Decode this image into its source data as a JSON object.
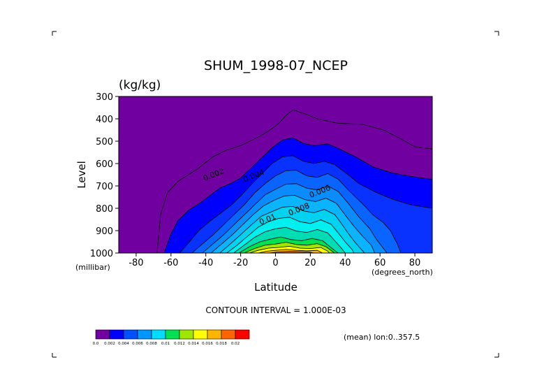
{
  "chart_data": {
    "type": "contour",
    "title": "SHUM_1998-07_NCEP",
    "units": "(kg/kg)",
    "xlabel": "Latitude",
    "ylabel": "Level",
    "x_unit_label": "(degrees_north)",
    "y_unit_label": "(millibar)",
    "xlim": [
      -90,
      90
    ],
    "ylim": [
      1000,
      300
    ],
    "x_ticks": [
      -80,
      -60,
      -40,
      -20,
      0,
      20,
      40,
      60,
      80
    ],
    "x_tick_labels": [
      "-80",
      "-60",
      "-40",
      "-20",
      "0",
      "20",
      "40",
      "60",
      "80"
    ],
    "y_ticks": [
      300,
      400,
      500,
      600,
      700,
      800,
      900,
      1000
    ],
    "y_tick_labels": [
      "300",
      "400",
      "500",
      "600",
      "700",
      "800",
      "900",
      "1000"
    ],
    "contour_interval_text": "CONTOUR INTERVAL = 1.000E-03",
    "annotation": "(mean) lon:0..357.5",
    "contour_labels": [
      {
        "text": "0.002",
        "lat": -35,
        "level": 660
      },
      {
        "text": "0.004",
        "lat": -12,
        "level": 665
      },
      {
        "text": "0.006",
        "lat": 26,
        "level": 735
      },
      {
        "text": "0.008",
        "lat": 14,
        "level": 815
      },
      {
        "text": "0.01",
        "lat": -4,
        "level": 860
      }
    ],
    "levels": [
      {
        "value": 0.001,
        "fill": false,
        "points": [
          [
            -68,
            1000
          ],
          [
            -66,
            830
          ],
          [
            -62,
            730
          ],
          [
            -56,
            680
          ],
          [
            -50,
            650
          ],
          [
            -44,
            620
          ],
          [
            -36,
            570
          ],
          [
            -28,
            540
          ],
          [
            -20,
            520
          ],
          [
            -12,
            490
          ],
          [
            -4,
            455
          ],
          [
            2,
            420
          ],
          [
            6,
            385
          ],
          [
            10,
            360
          ],
          [
            16,
            375
          ],
          [
            24,
            400
          ],
          [
            36,
            420
          ],
          [
            50,
            425
          ],
          [
            62,
            450
          ],
          [
            72,
            490
          ],
          [
            80,
            525
          ],
          [
            90,
            535
          ]
        ]
      },
      {
        "value": 0.002,
        "fill": true,
        "points": [
          [
            -64,
            1000
          ],
          [
            -60,
            915
          ],
          [
            -56,
            855
          ],
          [
            -50,
            810
          ],
          [
            -44,
            780
          ],
          [
            -38,
            745
          ],
          [
            -32,
            710
          ],
          [
            -26,
            690
          ],
          [
            -20,
            665
          ],
          [
            -14,
            620
          ],
          [
            -8,
            575
          ],
          [
            -2,
            530
          ],
          [
            4,
            495
          ],
          [
            10,
            485
          ],
          [
            16,
            510
          ],
          [
            22,
            520
          ],
          [
            30,
            512
          ],
          [
            38,
            540
          ],
          [
            46,
            570
          ],
          [
            56,
            615
          ],
          [
            66,
            640
          ],
          [
            76,
            655
          ],
          [
            84,
            665
          ],
          [
            90,
            670
          ]
        ]
      },
      {
        "value": 0.003,
        "fill": true,
        "points": [
          [
            -55,
            1000
          ],
          [
            -50,
            955
          ],
          [
            -44,
            900
          ],
          [
            -38,
            860
          ],
          [
            -32,
            825
          ],
          [
            -26,
            790
          ],
          [
            -20,
            745
          ],
          [
            -14,
            695
          ],
          [
            -8,
            648
          ],
          [
            -2,
            600
          ],
          [
            4,
            570
          ],
          [
            10,
            565
          ],
          [
            16,
            590
          ],
          [
            22,
            600
          ],
          [
            28,
            590
          ],
          [
            34,
            605
          ],
          [
            40,
            640
          ],
          [
            48,
            690
          ],
          [
            58,
            730
          ],
          [
            68,
            762
          ],
          [
            78,
            785
          ],
          [
            90,
            800
          ]
        ]
      },
      {
        "value": 0.004,
        "fill": true,
        "points": [
          [
            -48,
            1000
          ],
          [
            -42,
            960
          ],
          [
            -36,
            920
          ],
          [
            -30,
            875
          ],
          [
            -24,
            830
          ],
          [
            -18,
            785
          ],
          [
            -12,
            732
          ],
          [
            -6,
            690
          ],
          [
            0,
            655
          ],
          [
            6,
            632
          ],
          [
            12,
            630
          ],
          [
            18,
            655
          ],
          [
            24,
            662
          ],
          [
            30,
            645
          ],
          [
            36,
            670
          ],
          [
            42,
            720
          ],
          [
            50,
            780
          ],
          [
            56,
            830
          ],
          [
            62,
            865
          ],
          [
            66,
            900
          ],
          [
            70,
            960
          ],
          [
            72,
            1000
          ]
        ]
      },
      {
        "value": 0.005,
        "fill": true,
        "points": [
          [
            -42,
            1000
          ],
          [
            -36,
            960
          ],
          [
            -30,
            920
          ],
          [
            -24,
            875
          ],
          [
            -18,
            830
          ],
          [
            -12,
            785
          ],
          [
            -6,
            740
          ],
          [
            0,
            715
          ],
          [
            6,
            692
          ],
          [
            12,
            690
          ],
          [
            18,
            710
          ],
          [
            24,
            718
          ],
          [
            30,
            700
          ],
          [
            36,
            725
          ],
          [
            42,
            780
          ],
          [
            48,
            840
          ],
          [
            54,
            890
          ],
          [
            58,
            940
          ],
          [
            62,
            980
          ],
          [
            64,
            1000
          ]
        ]
      },
      {
        "value": 0.006,
        "fill": true,
        "points": [
          [
            -37,
            1000
          ],
          [
            -31,
            960
          ],
          [
            -25,
            920
          ],
          [
            -19,
            875
          ],
          [
            -13,
            830
          ],
          [
            -7,
            790
          ],
          [
            -1,
            765
          ],
          [
            5,
            745
          ],
          [
            11,
            742
          ],
          [
            17,
            762
          ],
          [
            23,
            770
          ],
          [
            29,
            755
          ],
          [
            35,
            778
          ],
          [
            40,
            830
          ],
          [
            45,
            880
          ],
          [
            50,
            925
          ],
          [
            55,
            965
          ],
          [
            57,
            1000
          ]
        ]
      },
      {
        "value": 0.007,
        "fill": true,
        "points": [
          [
            -32,
            1000
          ],
          [
            -26,
            960
          ],
          [
            -20,
            918
          ],
          [
            -14,
            875
          ],
          [
            -8,
            835
          ],
          [
            -2,
            815
          ],
          [
            4,
            795
          ],
          [
            10,
            792
          ],
          [
            16,
            812
          ],
          [
            22,
            820
          ],
          [
            28,
            805
          ],
          [
            34,
            828
          ],
          [
            38,
            870
          ],
          [
            42,
            915
          ],
          [
            46,
            955
          ],
          [
            50,
            990
          ],
          [
            51,
            1000
          ]
        ]
      },
      {
        "value": 0.008,
        "fill": true,
        "points": [
          [
            -28,
            1000
          ],
          [
            -22,
            965
          ],
          [
            -16,
            925
          ],
          [
            -10,
            885
          ],
          [
            -4,
            860
          ],
          [
            2,
            845
          ],
          [
            8,
            840
          ],
          [
            14,
            860
          ],
          [
            20,
            868
          ],
          [
            26,
            852
          ],
          [
            32,
            872
          ],
          [
            36,
            910
          ],
          [
            40,
            950
          ],
          [
            44,
            985
          ],
          [
            45,
            1000
          ]
        ]
      },
      {
        "value": 0.009,
        "fill": true,
        "points": [
          [
            -24,
            1000
          ],
          [
            -18,
            965
          ],
          [
            -12,
            930
          ],
          [
            -6,
            905
          ],
          [
            0,
            892
          ],
          [
            6,
            885
          ],
          [
            12,
            902
          ],
          [
            18,
            908
          ],
          [
            24,
            895
          ],
          [
            30,
            910
          ],
          [
            34,
            945
          ],
          [
            38,
            980
          ],
          [
            40,
            1000
          ]
        ]
      },
      {
        "value": 0.01,
        "fill": true,
        "points": [
          [
            -21,
            1000
          ],
          [
            -15,
            972
          ],
          [
            -9,
            950
          ],
          [
            -3,
            938
          ],
          [
            3,
            928
          ],
          [
            9,
            940
          ],
          [
            15,
            945
          ],
          [
            21,
            935
          ],
          [
            27,
            945
          ],
          [
            31,
            970
          ],
          [
            35,
            995
          ],
          [
            36,
            1000
          ]
        ]
      },
      {
        "value": 0.012,
        "fill": true,
        "points": [
          [
            -18,
            1000
          ],
          [
            -12,
            980
          ],
          [
            -6,
            965
          ],
          [
            0,
            960
          ],
          [
            6,
            952
          ],
          [
            12,
            962
          ],
          [
            18,
            965
          ],
          [
            24,
            958
          ],
          [
            29,
            972
          ],
          [
            33,
            995
          ],
          [
            34,
            1000
          ]
        ]
      },
      {
        "value": 0.014,
        "fill": true,
        "points": [
          [
            -15,
            1000
          ],
          [
            -10,
            988
          ],
          [
            -4,
            978
          ],
          [
            2,
            975
          ],
          [
            8,
            970
          ],
          [
            14,
            978
          ],
          [
            20,
            980
          ],
          [
            26,
            975
          ],
          [
            30,
            992
          ],
          [
            31,
            1000
          ]
        ]
      },
      {
        "value": 0.016,
        "fill": true,
        "points": [
          [
            -10,
            1000
          ],
          [
            -5,
            992
          ],
          [
            0,
            988
          ],
          [
            6,
            984
          ],
          [
            12,
            988
          ],
          [
            18,
            990
          ],
          [
            24,
            988
          ],
          [
            27,
            1000
          ]
        ]
      },
      {
        "value": 0.018,
        "fill": true,
        "points": [
          [
            -4,
            1000
          ],
          [
            2,
            995
          ],
          [
            8,
            993
          ],
          [
            14,
            994
          ],
          [
            20,
            996
          ],
          [
            22,
            1000
          ]
        ]
      }
    ],
    "fill_bands": [
      {
        "min": 0.0,
        "color": "#7000a0"
      },
      {
        "min": 0.002,
        "color": "#0000ff"
      },
      {
        "min": 0.003,
        "color": "#0a32ff"
      },
      {
        "min": 0.004,
        "color": "#0a64ff"
      },
      {
        "min": 0.005,
        "color": "#0a8cff"
      },
      {
        "min": 0.006,
        "color": "#0ab4ff"
      },
      {
        "min": 0.007,
        "color": "#00d2f0"
      },
      {
        "min": 0.008,
        "color": "#00f0f0"
      },
      {
        "min": 0.009,
        "color": "#00dcb4"
      },
      {
        "min": 0.01,
        "color": "#00e050"
      },
      {
        "min": 0.012,
        "color": "#a0e600"
      },
      {
        "min": 0.014,
        "color": "#ffff00"
      },
      {
        "min": 0.016,
        "color": "#ffb400"
      },
      {
        "min": 0.018,
        "color": "#ff6400"
      }
    ],
    "colorbar": {
      "labels": [
        "0.0",
        "0.002",
        "0.004",
        "0.006",
        "0.008",
        "0.01",
        "0.012",
        "0.014",
        "0.016",
        "0.018",
        "0.02"
      ],
      "colors": [
        "#7000a0",
        "#0000ff",
        "#0050ff",
        "#0096ff",
        "#00dcff",
        "#00e050",
        "#a0e600",
        "#ffff00",
        "#ffb400",
        "#ff6400",
        "#ff0000"
      ]
    },
    "grid": false
  }
}
